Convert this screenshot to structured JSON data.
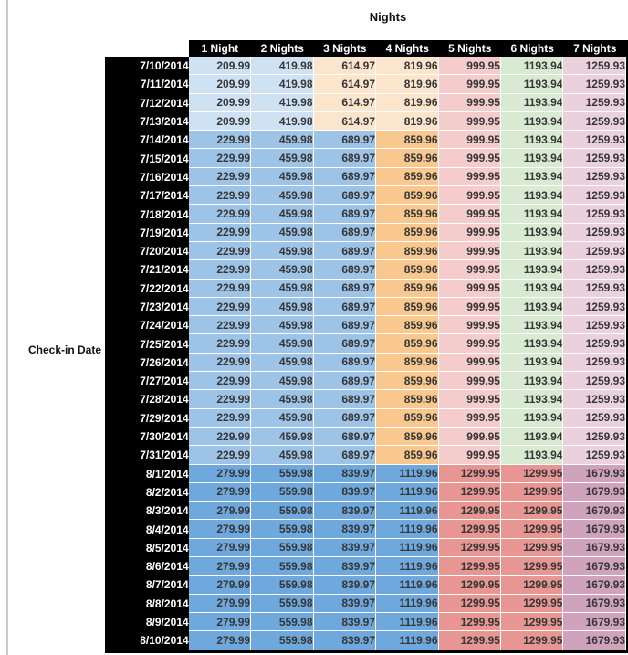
{
  "palette": {
    "b3": "#cfe2f3",
    "b2": "#9dc3e6",
    "b1": "#6fa8dc",
    "o3": "#fce5cd",
    "o2": "#f8c88f",
    "r3": "#f4cccc",
    "r2": "#e89694",
    "g3": "#d9ead3",
    "p3": "#ead1dc",
    "p2": "#d0a3bd",
    "header_bg": "#000000",
    "header_text": "#ffffff",
    "value_text": "#363636",
    "left_rule": "#c9c9c9"
  },
  "schemes": {
    "early": [
      "b3",
      "b3",
      "o3",
      "o3",
      "r3",
      "g3",
      "p3"
    ],
    "mid": [
      "b2",
      "b2",
      "b2",
      "o2",
      "r3",
      "g3",
      "p3"
    ],
    "peak": [
      "b1",
      "b1",
      "b1",
      "b1",
      "r2",
      "r2",
      "p2"
    ]
  },
  "chart_data": {
    "type": "table",
    "title": "Nights",
    "row_label": "Check-in Date",
    "columns": [
      "1 Night",
      "2 Nights",
      "3 Nights",
      "4 Nights",
      "5 Nights",
      "6 Nights",
      "7 Nights"
    ],
    "rows": [
      {
        "date": "7/10/2014",
        "scheme": "early",
        "values": [
          "209.99",
          "419.98",
          "614.97",
          "819.96",
          "999.95",
          "1193.94",
          "1259.93"
        ]
      },
      {
        "date": "7/11/2014",
        "scheme": "early",
        "values": [
          "209.99",
          "419.98",
          "614.97",
          "819.96",
          "999.95",
          "1193.94",
          "1259.93"
        ]
      },
      {
        "date": "7/12/2014",
        "scheme": "early",
        "values": [
          "209.99",
          "419.98",
          "614.97",
          "819.96",
          "999.95",
          "1193.94",
          "1259.93"
        ]
      },
      {
        "date": "7/13/2014",
        "scheme": "early",
        "values": [
          "209.99",
          "419.98",
          "614.97",
          "819.96",
          "999.95",
          "1193.94",
          "1259.93"
        ]
      },
      {
        "date": "7/14/2014",
        "scheme": "mid",
        "values": [
          "229.99",
          "459.98",
          "689.97",
          "859.96",
          "999.95",
          "1193.94",
          "1259.93"
        ]
      },
      {
        "date": "7/15/2014",
        "scheme": "mid",
        "values": [
          "229.99",
          "459.98",
          "689.97",
          "859.96",
          "999.95",
          "1193.94",
          "1259.93"
        ]
      },
      {
        "date": "7/16/2014",
        "scheme": "mid",
        "values": [
          "229.99",
          "459.98",
          "689.97",
          "859.96",
          "999.95",
          "1193.94",
          "1259.93"
        ]
      },
      {
        "date": "7/17/2014",
        "scheme": "mid",
        "values": [
          "229.99",
          "459.98",
          "689.97",
          "859.96",
          "999.95",
          "1193.94",
          "1259.93"
        ]
      },
      {
        "date": "7/18/2014",
        "scheme": "mid",
        "values": [
          "229.99",
          "459.98",
          "689.97",
          "859.96",
          "999.95",
          "1193.94",
          "1259.93"
        ]
      },
      {
        "date": "7/19/2014",
        "scheme": "mid",
        "values": [
          "229.99",
          "459.98",
          "689.97",
          "859.96",
          "999.95",
          "1193.94",
          "1259.93"
        ]
      },
      {
        "date": "7/20/2014",
        "scheme": "mid",
        "values": [
          "229.99",
          "459.98",
          "689.97",
          "859.96",
          "999.95",
          "1193.94",
          "1259.93"
        ]
      },
      {
        "date": "7/21/2014",
        "scheme": "mid",
        "values": [
          "229.99",
          "459.98",
          "689.97",
          "859.96",
          "999.95",
          "1193.94",
          "1259.93"
        ]
      },
      {
        "date": "7/22/2014",
        "scheme": "mid",
        "values": [
          "229.99",
          "459.98",
          "689.97",
          "859.96",
          "999.95",
          "1193.94",
          "1259.93"
        ]
      },
      {
        "date": "7/23/2014",
        "scheme": "mid",
        "values": [
          "229.99",
          "459.98",
          "689.97",
          "859.96",
          "999.95",
          "1193.94",
          "1259.93"
        ]
      },
      {
        "date": "7/24/2014",
        "scheme": "mid",
        "values": [
          "229.99",
          "459.98",
          "689.97",
          "859.96",
          "999.95",
          "1193.94",
          "1259.93"
        ]
      },
      {
        "date": "7/25/2014",
        "scheme": "mid",
        "values": [
          "229.99",
          "459.98",
          "689.97",
          "859.96",
          "999.95",
          "1193.94",
          "1259.93"
        ]
      },
      {
        "date": "7/26/2014",
        "scheme": "mid",
        "values": [
          "229.99",
          "459.98",
          "689.97",
          "859.96",
          "999.95",
          "1193.94",
          "1259.93"
        ]
      },
      {
        "date": "7/27/2014",
        "scheme": "mid",
        "values": [
          "229.99",
          "459.98",
          "689.97",
          "859.96",
          "999.95",
          "1193.94",
          "1259.93"
        ]
      },
      {
        "date": "7/28/2014",
        "scheme": "mid",
        "values": [
          "229.99",
          "459.98",
          "689.97",
          "859.96",
          "999.95",
          "1193.94",
          "1259.93"
        ]
      },
      {
        "date": "7/29/2014",
        "scheme": "mid",
        "values": [
          "229.99",
          "459.98",
          "689.97",
          "859.96",
          "999.95",
          "1193.94",
          "1259.93"
        ]
      },
      {
        "date": "7/30/2014",
        "scheme": "mid",
        "values": [
          "229.99",
          "459.98",
          "689.97",
          "859.96",
          "999.95",
          "1193.94",
          "1259.93"
        ]
      },
      {
        "date": "7/31/2014",
        "scheme": "mid",
        "values": [
          "229.99",
          "459.98",
          "689.97",
          "859.96",
          "999.95",
          "1193.94",
          "1259.93"
        ]
      },
      {
        "date": "8/1/2014",
        "scheme": "peak",
        "values": [
          "279.99",
          "559.98",
          "839.97",
          "1119.96",
          "1299.95",
          "1299.95",
          "1679.93"
        ]
      },
      {
        "date": "8/2/2014",
        "scheme": "peak",
        "values": [
          "279.99",
          "559.98",
          "839.97",
          "1119.96",
          "1299.95",
          "1299.95",
          "1679.93"
        ]
      },
      {
        "date": "8/3/2014",
        "scheme": "peak",
        "values": [
          "279.99",
          "559.98",
          "839.97",
          "1119.96",
          "1299.95",
          "1299.95",
          "1679.93"
        ]
      },
      {
        "date": "8/4/2014",
        "scheme": "peak",
        "values": [
          "279.99",
          "559.98",
          "839.97",
          "1119.96",
          "1299.95",
          "1299.95",
          "1679.93"
        ]
      },
      {
        "date": "8/5/2014",
        "scheme": "peak",
        "values": [
          "279.99",
          "559.98",
          "839.97",
          "1119.96",
          "1299.95",
          "1299.95",
          "1679.93"
        ]
      },
      {
        "date": "8/6/2014",
        "scheme": "peak",
        "values": [
          "279.99",
          "559.98",
          "839.97",
          "1119.96",
          "1299.95",
          "1299.95",
          "1679.93"
        ]
      },
      {
        "date": "8/7/2014",
        "scheme": "peak",
        "values": [
          "279.99",
          "559.98",
          "839.97",
          "1119.96",
          "1299.95",
          "1299.95",
          "1679.93"
        ]
      },
      {
        "date": "8/8/2014",
        "scheme": "peak",
        "values": [
          "279.99",
          "559.98",
          "839.97",
          "1119.96",
          "1299.95",
          "1299.95",
          "1679.93"
        ]
      },
      {
        "date": "8/9/2014",
        "scheme": "peak",
        "values": [
          "279.99",
          "559.98",
          "839.97",
          "1119.96",
          "1299.95",
          "1299.95",
          "1679.93"
        ]
      },
      {
        "date": "8/10/2014",
        "scheme": "peak",
        "values": [
          "279.99",
          "559.98",
          "839.97",
          "1119.96",
          "1299.95",
          "1299.95",
          "1679.93"
        ]
      }
    ]
  }
}
